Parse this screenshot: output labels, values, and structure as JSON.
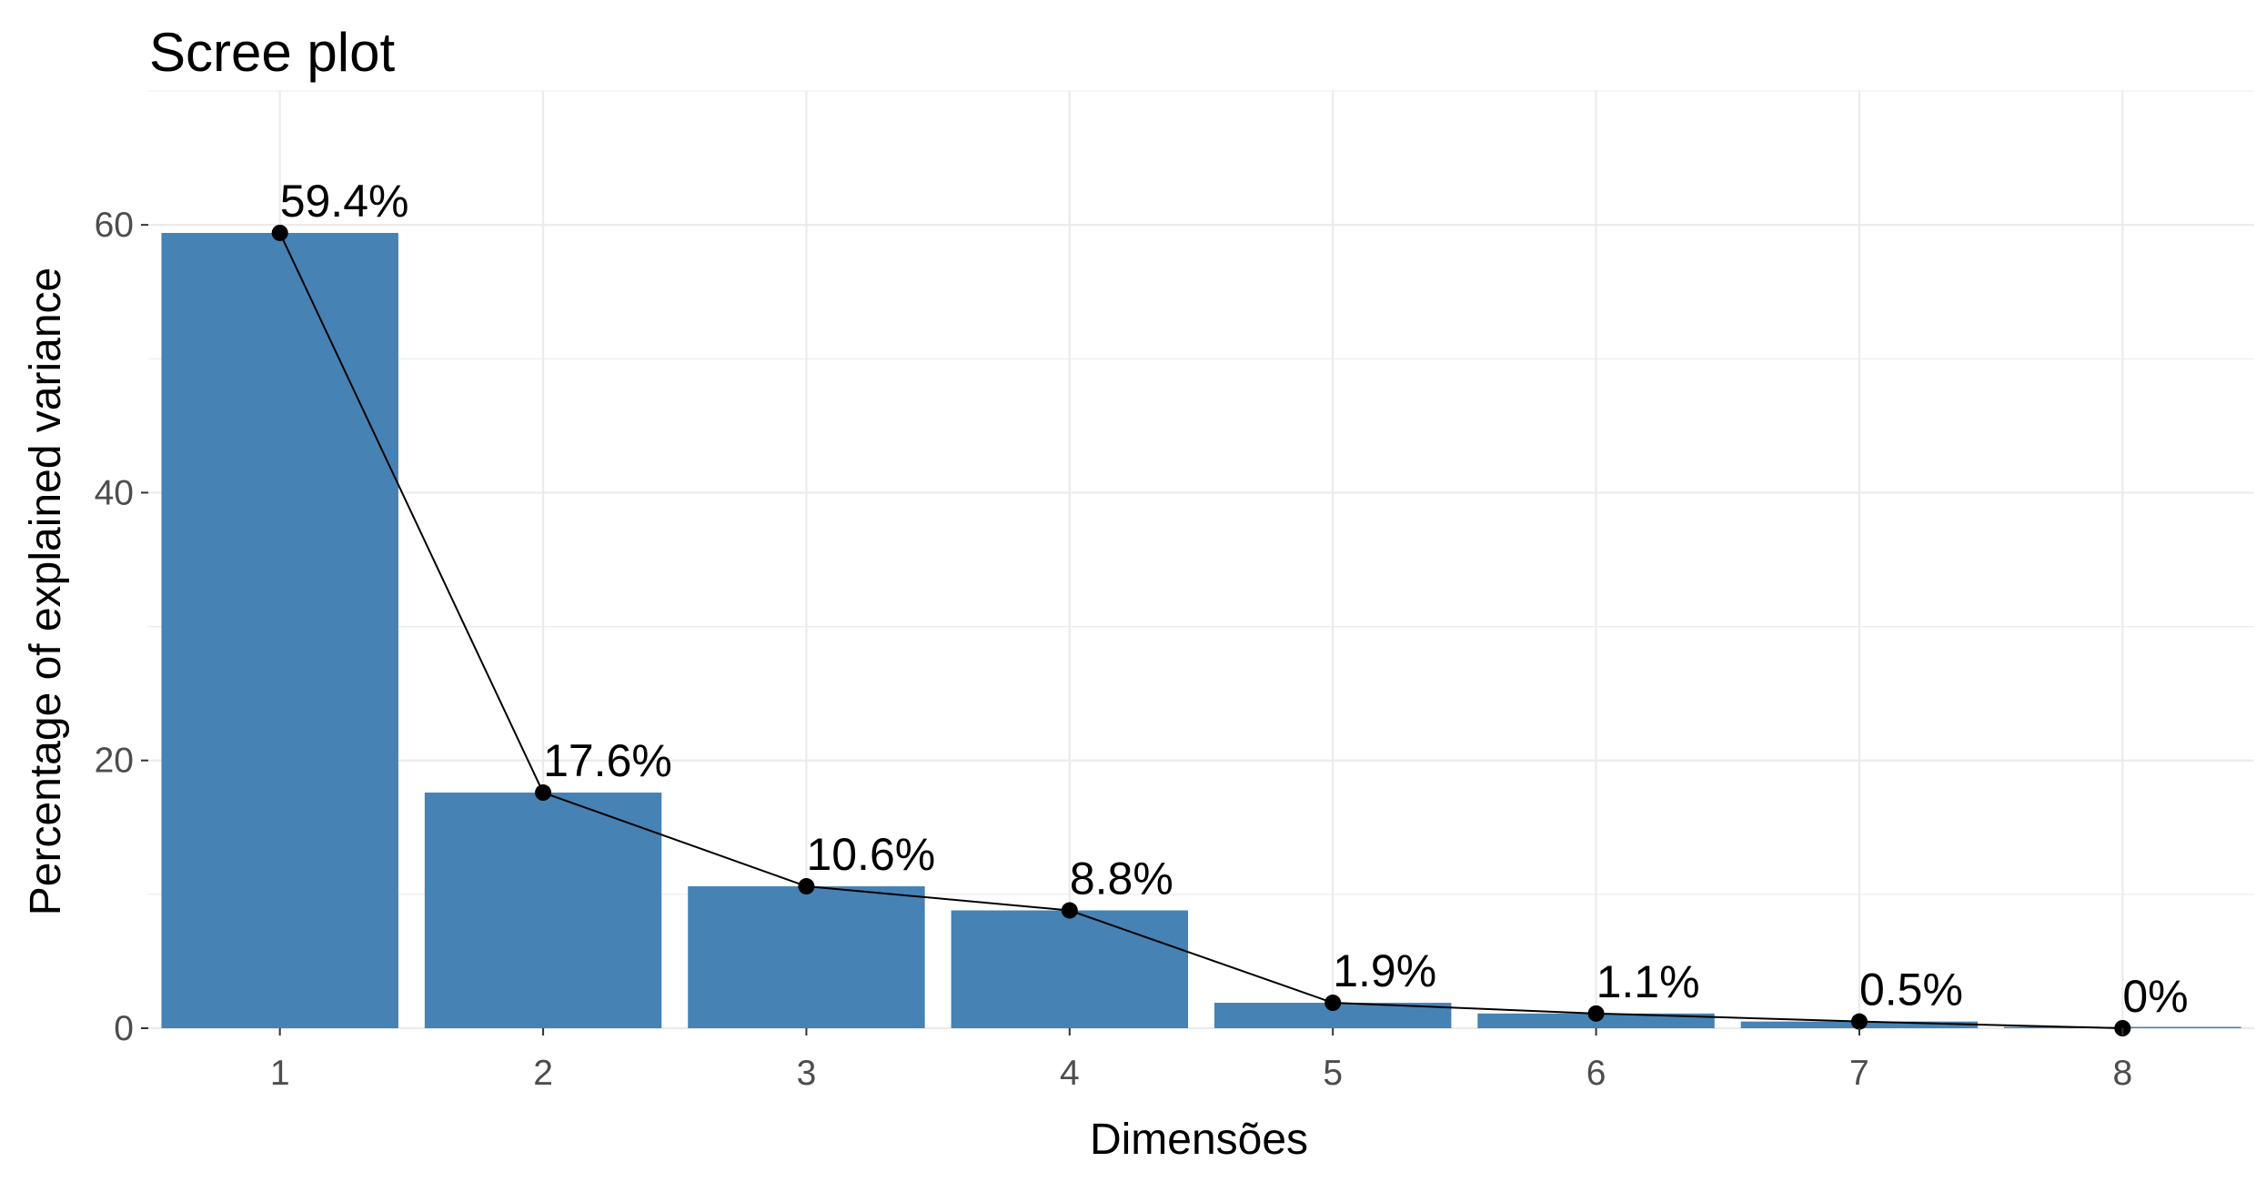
{
  "chart_data": {
    "type": "bar",
    "title": "Scree plot",
    "xlabel": "Dimensões",
    "ylabel": "Percentage of explained variance",
    "categories": [
      "1",
      "2",
      "3",
      "4",
      "5",
      "6",
      "7",
      "8"
    ],
    "values": [
      59.4,
      17.6,
      10.6,
      8.8,
      1.9,
      1.1,
      0.5,
      0.0
    ],
    "data_labels": [
      "59.4%",
      "17.6%",
      "10.6%",
      "8.8%",
      "1.9%",
      "1.1%",
      "0.5%",
      "0%"
    ],
    "overlay": "line-with-points",
    "ylim": [
      0,
      70
    ],
    "yticks": [
      0,
      20,
      40,
      60
    ],
    "yticks_labels": [
      "0",
      "20",
      "40",
      "60"
    ],
    "grid": true,
    "legend": "none",
    "bar_color": "#4682B4",
    "line_color": "#000000"
  }
}
